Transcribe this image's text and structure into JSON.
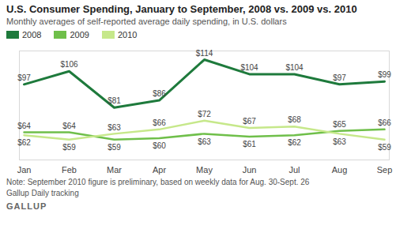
{
  "chart_data": {
    "type": "line",
    "title": "U.S. Consumer Spending, January to September, 2008 vs. 2009 vs. 2010",
    "subtitle": "Monthly averages of self-reported average daily spending, in U.S. dollars",
    "caption": "Note: September 2010 figure is preliminary, based on weekly data for Aug. 30-Sept. 26",
    "source": "Gallup Daily tracking",
    "credit": "GALLUP",
    "categories": [
      "Jan",
      "Feb",
      "Mar",
      "Apr",
      "May",
      "Jun",
      "Jul",
      "Aug",
      "Sep"
    ],
    "series": [
      {
        "name": "2008",
        "color": "#1e7a3c",
        "values": [
          97,
          106,
          81,
          86,
          114,
          104,
          104,
          97,
          99
        ],
        "value_labels": [
          "$97",
          "$106",
          "$81",
          "$86",
          "$114",
          "$104",
          "$104",
          "$97",
          "$99"
        ]
      },
      {
        "name": "2009",
        "color": "#6fbf4a",
        "values": [
          64,
          64,
          59,
          60,
          63,
          61,
          62,
          65,
          66
        ],
        "value_labels": [
          "$64",
          "$64",
          "$59",
          "$60",
          "$63",
          "$61",
          "$62",
          "$65",
          "$66"
        ]
      },
      {
        "name": "2010",
        "color": "#c6e88a",
        "values": [
          62,
          59,
          63,
          66,
          72,
          67,
          68,
          63,
          59
        ],
        "value_labels": [
          "$62",
          "$59",
          "$63",
          "$66",
          "$72",
          "$67",
          "$68",
          "$63",
          "$59"
        ]
      }
    ],
    "ylim": [
      45,
      120
    ],
    "yticks": [],
    "legend": "top",
    "data_labels": true,
    "tick_labels": "x",
    "grid": false
  }
}
